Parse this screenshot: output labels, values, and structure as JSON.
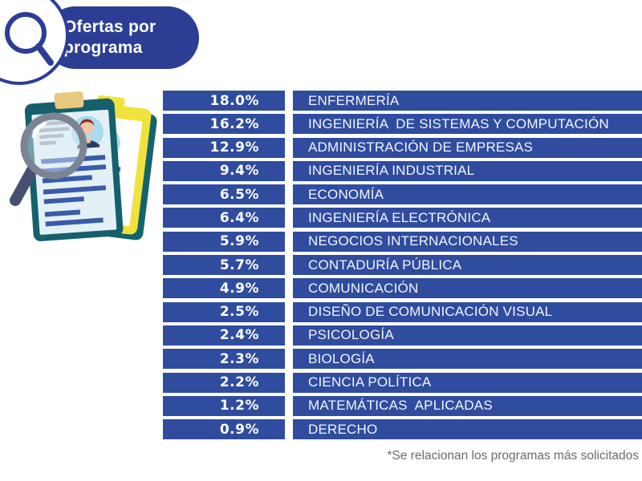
{
  "header": {
    "title_line1": "Ofertas por",
    "title_line2": "programa"
  },
  "table": {
    "rows": [
      {
        "pct": "18.0%",
        "label": "ENFERMERÍA"
      },
      {
        "pct": "16.2%",
        "label": "INGENIERÍA  DE SISTEMAS Y COMPUTACIÓN"
      },
      {
        "pct": "12.9%",
        "label": "ADMINISTRACIÓN DE EMPRESAS"
      },
      {
        "pct": "9.4%",
        "label": "INGENIERÍA INDUSTRIAL"
      },
      {
        "pct": "6.5%",
        "label": "ECONOMÍA"
      },
      {
        "pct": "6.4%",
        "label": "INGENIERÍA ELECTRÓNICA"
      },
      {
        "pct": "5.9%",
        "label": "NEGOCIOS INTERNACIONALES"
      },
      {
        "pct": "5.7%",
        "label": "CONTADURÍA PÚBLICA"
      },
      {
        "pct": "4.9%",
        "label": "COMUNICACIÓN"
      },
      {
        "pct": "2.5%",
        "label": "DISEÑO DE COMUNICACIÓN VISUAL"
      },
      {
        "pct": "2.4%",
        "label": "PSICOLOGÍA"
      },
      {
        "pct": "2.3%",
        "label": "BIOLOGÍA"
      },
      {
        "pct": "2.2%",
        "label": "CIENCIA POLÍTICA"
      },
      {
        "pct": "1.2%",
        "label": "MATEMÁTICAS  APLICADAS"
      },
      {
        "pct": "0.9%",
        "label": "DERECHO"
      }
    ]
  },
  "footnote": "*Se relacionan los programas más solicitados",
  "icons": {
    "header_icon": "magnifier-icon",
    "illustration": "resumes-with-magnifying-glass"
  },
  "colors": {
    "header_blue": "#2C3E94",
    "row_blue": "#2F4C9E",
    "footnote_gray": "#6B6B6B",
    "clipboard_teal": "#15606C",
    "clipboard_yellow": "#F0E23C",
    "clip_tan": "#E9C87F",
    "page_light_blue": "#E3F1F7",
    "avatar_blue": "#A9DAEE",
    "text_bar_blue": "#3B5AA9",
    "glass_gray": "#7C8494",
    "handle_slate": "#47506E"
  },
  "chart_data": {
    "type": "table",
    "title": "Ofertas por programa",
    "categories": [
      "ENFERMERÍA",
      "INGENIERÍA DE SISTEMAS Y COMPUTACIÓN",
      "ADMINISTRACIÓN DE EMPRESAS",
      "INGENIERÍA INDUSTRIAL",
      "ECONOMÍA",
      "INGENIERÍA ELECTRÓNICA",
      "NEGOCIOS INTERNACIONALES",
      "CONTADURÍA PÚBLICA",
      "COMUNICACIÓN",
      "DISEÑO DE COMUNICACIÓN VISUAL",
      "PSICOLOGÍA",
      "BIOLOGÍA",
      "CIENCIA POLÍTICA",
      "MATEMÁTICAS APLICADAS",
      "DERECHO"
    ],
    "values": [
      18.0,
      16.2,
      12.9,
      9.4,
      6.5,
      6.4,
      5.9,
      5.7,
      4.9,
      2.5,
      2.4,
      2.3,
      2.2,
      1.2,
      0.9
    ],
    "unit": "%",
    "footnote": "*Se relacionan los programas más solicitados"
  }
}
